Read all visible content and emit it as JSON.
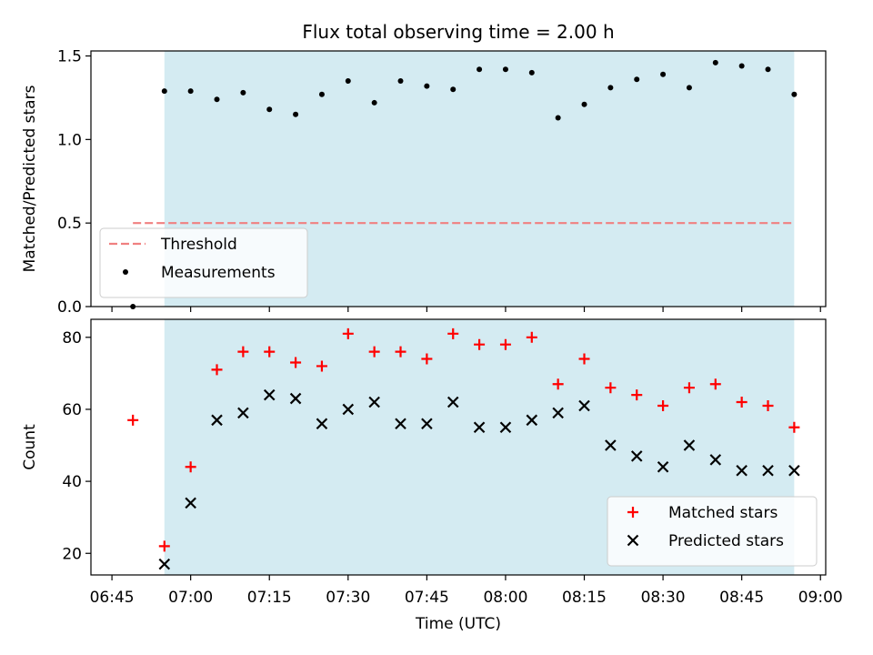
{
  "chart_data": {
    "type": "scatter",
    "title": "Flux total observing time = 2.00 h",
    "xlabel": "Time (UTC)",
    "x_ticks": [
      "06:45",
      "07:00",
      "07:15",
      "07:30",
      "07:45",
      "08:00",
      "08:15",
      "08:30",
      "08:45",
      "09:00"
    ],
    "x_range": [
      "06:41",
      "09:01"
    ],
    "shaded_interval": [
      "06:55",
      "08:55"
    ],
    "colors": {
      "shade": "#add8e6",
      "threshold": "#f08080",
      "measurements": "#000000",
      "matched": "#ff0000",
      "predicted": "#000000"
    },
    "panels": [
      {
        "ylabel": "Matched/Predicted stars",
        "ylim": [
          0,
          1.53
        ],
        "y_ticks": [
          "0.0",
          "0.5",
          "1.0",
          "1.5"
        ],
        "legend_position": "lower-left",
        "series": [
          {
            "name": "Threshold",
            "kind": "dashed-line",
            "points": [
              [
                "06:49",
                0.5
              ],
              [
                "08:55",
                0.5
              ]
            ]
          },
          {
            "name": "Measurements",
            "kind": "dot",
            "points": [
              [
                "06:49",
                0.0
              ],
              [
                "06:55",
                1.29
              ],
              [
                "07:00",
                1.29
              ],
              [
                "07:05",
                1.24
              ],
              [
                "07:10",
                1.28
              ],
              [
                "07:15",
                1.18
              ],
              [
                "07:20",
                1.15
              ],
              [
                "07:25",
                1.27
              ],
              [
                "07:30",
                1.35
              ],
              [
                "07:35",
                1.22
              ],
              [
                "07:40",
                1.35
              ],
              [
                "07:45",
                1.32
              ],
              [
                "07:50",
                1.3
              ],
              [
                "07:55",
                1.42
              ],
              [
                "08:00",
                1.42
              ],
              [
                "08:05",
                1.4
              ],
              [
                "08:10",
                1.13
              ],
              [
                "08:15",
                1.21
              ],
              [
                "08:20",
                1.31
              ],
              [
                "08:25",
                1.36
              ],
              [
                "08:30",
                1.39
              ],
              [
                "08:35",
                1.31
              ],
              [
                "08:40",
                1.46
              ],
              [
                "08:45",
                1.44
              ],
              [
                "08:50",
                1.42
              ],
              [
                "08:55",
                1.27
              ]
            ]
          }
        ]
      },
      {
        "ylabel": "Count",
        "ylim": [
          14,
          85
        ],
        "y_ticks": [
          "20",
          "40",
          "60",
          "80"
        ],
        "legend_position": "lower-right",
        "series": [
          {
            "name": "Matched stars",
            "kind": "plus",
            "points": [
              [
                "06:49",
                57
              ],
              [
                "06:55",
                22
              ],
              [
                "07:00",
                44
              ],
              [
                "07:05",
                71
              ],
              [
                "07:10",
                76
              ],
              [
                "07:15",
                76
              ],
              [
                "07:20",
                73
              ],
              [
                "07:25",
                72
              ],
              [
                "07:30",
                81
              ],
              [
                "07:35",
                76
              ],
              [
                "07:40",
                76
              ],
              [
                "07:45",
                74
              ],
              [
                "07:50",
                81
              ],
              [
                "07:55",
                78
              ],
              [
                "08:00",
                78
              ],
              [
                "08:05",
                80
              ],
              [
                "08:10",
                67
              ],
              [
                "08:15",
                74
              ],
              [
                "08:20",
                66
              ],
              [
                "08:25",
                64
              ],
              [
                "08:30",
                61
              ],
              [
                "08:35",
                66
              ],
              [
                "08:40",
                67
              ],
              [
                "08:45",
                62
              ],
              [
                "08:50",
                61
              ],
              [
                "08:55",
                55
              ]
            ]
          },
          {
            "name": "Predicted stars",
            "kind": "cross",
            "points": [
              [
                "06:55",
                17
              ],
              [
                "07:00",
                34
              ],
              [
                "07:05",
                57
              ],
              [
                "07:10",
                59
              ],
              [
                "07:15",
                64
              ],
              [
                "07:20",
                63
              ],
              [
                "07:25",
                56
              ],
              [
                "07:30",
                60
              ],
              [
                "07:35",
                62
              ],
              [
                "07:40",
                56
              ],
              [
                "07:45",
                56
              ],
              [
                "07:50",
                62
              ],
              [
                "07:55",
                55
              ],
              [
                "08:00",
                55
              ],
              [
                "08:05",
                57
              ],
              [
                "08:10",
                59
              ],
              [
                "08:15",
                61
              ],
              [
                "08:20",
                50
              ],
              [
                "08:25",
                47
              ],
              [
                "08:30",
                44
              ],
              [
                "08:35",
                50
              ],
              [
                "08:40",
                46
              ],
              [
                "08:45",
                43
              ],
              [
                "08:50",
                43
              ],
              [
                "08:55",
                43
              ]
            ]
          }
        ]
      }
    ]
  }
}
